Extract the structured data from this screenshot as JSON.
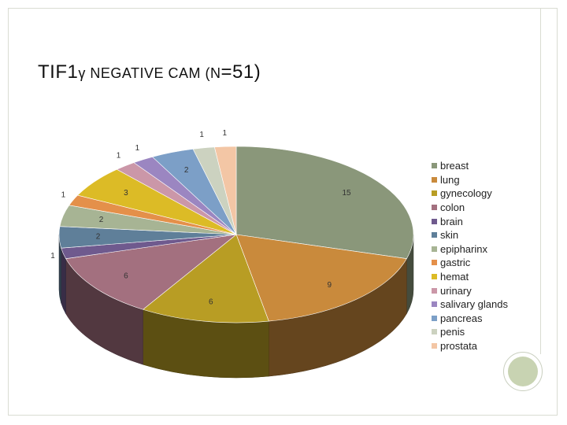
{
  "title": {
    "part1": "TIF1",
    "part2": "γ",
    "part3": " NEGATIVE CAM (",
    "part4": "N",
    "part5": "=51)"
  },
  "chart_data": {
    "type": "pie",
    "title": "TIF1γ NEGATIVE CAM (N=51)",
    "three_d": true,
    "legend_position": "right",
    "slices": [
      {
        "label": "breast",
        "value": 15,
        "color": "#8a977a"
      },
      {
        "label": "lung",
        "value": 9,
        "color": "#c98a3c"
      },
      {
        "label": "gynecology",
        "value": 6,
        "color": "#b89d24"
      },
      {
        "label": "colon",
        "value": 6,
        "color": "#a3707f"
      },
      {
        "label": "brain",
        "value": 1,
        "color": "#6f5a8e"
      },
      {
        "label": "skin",
        "value": 2,
        "color": "#5f7f99"
      },
      {
        "label": "epipharinx",
        "value": 2,
        "color": "#a7b494"
      },
      {
        "label": "gastric",
        "value": 1,
        "color": "#e4904a"
      },
      {
        "label": "hemat",
        "value": 3,
        "color": "#dcbb26"
      },
      {
        "label": "urinary",
        "value": 1,
        "color": "#cb97a8"
      },
      {
        "label": "salivary glands",
        "value": 1,
        "color": "#9b86c1"
      },
      {
        "label": "pancreas",
        "value": 2,
        "color": "#7c9fc7"
      },
      {
        "label": "penis",
        "value": 1,
        "color": "#ccd2c0"
      },
      {
        "label": "prostata",
        "value": 1,
        "color": "#f3c6a5"
      }
    ]
  }
}
